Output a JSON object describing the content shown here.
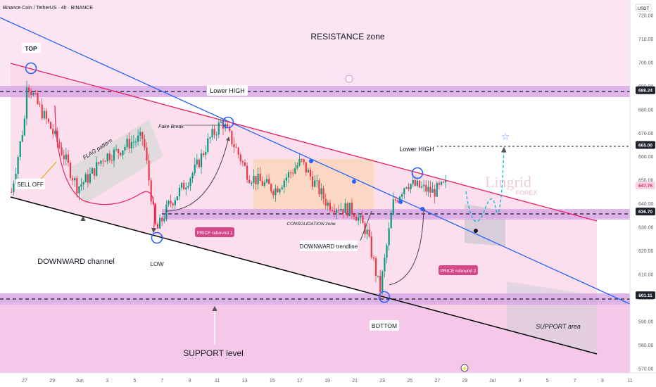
{
  "header": {
    "symbol_title": "Binance Coin / TetherUS · 4h · BINANCE"
  },
  "price_axis": {
    "currency": "USDT",
    "ticks": [
      "720.00",
      "710.00",
      "700.00",
      "690.00",
      "680.00",
      "670.00",
      "660.00",
      "650.00",
      "640.00",
      "630.00",
      "620.00",
      "610.00",
      "600.00",
      "590.00",
      "580.00",
      "570.00"
    ],
    "price_labels": [
      {
        "value": 688.24,
        "text": "688.24",
        "bg": "#1e222d",
        "fg": "#ffffff"
      },
      {
        "value": 665.0,
        "text": "665.00",
        "bg": "#1e222d",
        "fg": "#ffffff"
      },
      {
        "value": 647.76,
        "text": "647.76",
        "bg": "#f7d3e3",
        "fg": "#e91e63"
      },
      {
        "value": 636.7,
        "text": "636.70",
        "bg": "#1e222d",
        "fg": "#ffffff"
      },
      {
        "value": 601.11,
        "text": "601.11",
        "bg": "#1e222d",
        "fg": "#ffffff"
      }
    ]
  },
  "time_axis": {
    "ticks": [
      "27",
      "29",
      "Jun",
      "3",
      "5",
      "7",
      "9",
      "11",
      "13",
      "15",
      "17",
      "19",
      "21",
      "23",
      "25",
      "27",
      "29",
      "Jul",
      "3",
      "5",
      "7",
      "9",
      "11"
    ]
  },
  "annotations": {
    "resistance_zone": "RESISTANCE zone",
    "top": "TOP",
    "lower_high_1": "Lower HIGH",
    "lower_high_2": "Lower HIGH",
    "fake_break": "Fake Break",
    "flag_pattern": "FLAG pattern",
    "sell_off": "SELL OFF",
    "downward_channel": "DOWNWARD channel",
    "low": "LOW",
    "price_rebound_1": "PRICE rebound 1",
    "price_rebound_2": "PRICE rebound 2",
    "consolidation_zone": "CONSOLIDATION zone",
    "downward_trendline": "DOWNWARD trendline",
    "bottom": "BOTTOM",
    "support_area": "SUPPORT area",
    "support_level": "SUPPORT level"
  },
  "watermark": {
    "name": "Lingrid",
    "sub": "FOREX"
  },
  "colors": {
    "up": "#089981",
    "down": "#f23645",
    "zone": "#ce93d8",
    "trendline": "#2962ff",
    "channel_top": "#e91e63",
    "channel_bottom": "#000000",
    "projection": "#00bcd4"
  },
  "chart_data": {
    "type": "candlestick",
    "symbol": "BNBUSDT",
    "timeframe": "4h",
    "exchange": "BINANCE",
    "ylim": [
      568,
      724
    ],
    "horizontal_levels": [
      688.24,
      665.0,
      636.7,
      601.11
    ],
    "last_price": 647.76,
    "close_path": [
      {
        "x": "May 26",
        "y": 645
      },
      {
        "x": "May 27",
        "y": 676
      },
      {
        "x": "May 27",
        "y": 694
      },
      {
        "x": "May 28",
        "y": 682
      },
      {
        "x": "May 29",
        "y": 672
      },
      {
        "x": "May 30",
        "y": 660
      },
      {
        "x": "May 31",
        "y": 647
      },
      {
        "x": "Jun 1",
        "y": 652
      },
      {
        "x": "Jun 2",
        "y": 660
      },
      {
        "x": "Jun 3",
        "y": 662
      },
      {
        "x": "Jun 4",
        "y": 666
      },
      {
        "x": "Jun 5",
        "y": 668
      },
      {
        "x": "Jun 6",
        "y": 628
      },
      {
        "x": "Jun 7",
        "y": 640
      },
      {
        "x": "Jun 8",
        "y": 647
      },
      {
        "x": "Jun 9",
        "y": 655
      },
      {
        "x": "Jun 10",
        "y": 667
      },
      {
        "x": "Jun 11",
        "y": 675
      },
      {
        "x": "Jun 12",
        "y": 664
      },
      {
        "x": "Jun 13",
        "y": 652
      },
      {
        "x": "Jun 15",
        "y": 646
      },
      {
        "x": "Jun 17",
        "y": 658
      },
      {
        "x": "Jun 19",
        "y": 640
      },
      {
        "x": "Jun 21",
        "y": 637
      },
      {
        "x": "Jun 22",
        "y": 628
      },
      {
        "x": "Jun 23",
        "y": 603
      },
      {
        "x": "Jun 24",
        "y": 640
      },
      {
        "x": "Jun 25",
        "y": 649
      },
      {
        "x": "Jun 27",
        "y": 645
      },
      {
        "x": "Jun 28",
        "y": 647.76
      }
    ]
  }
}
